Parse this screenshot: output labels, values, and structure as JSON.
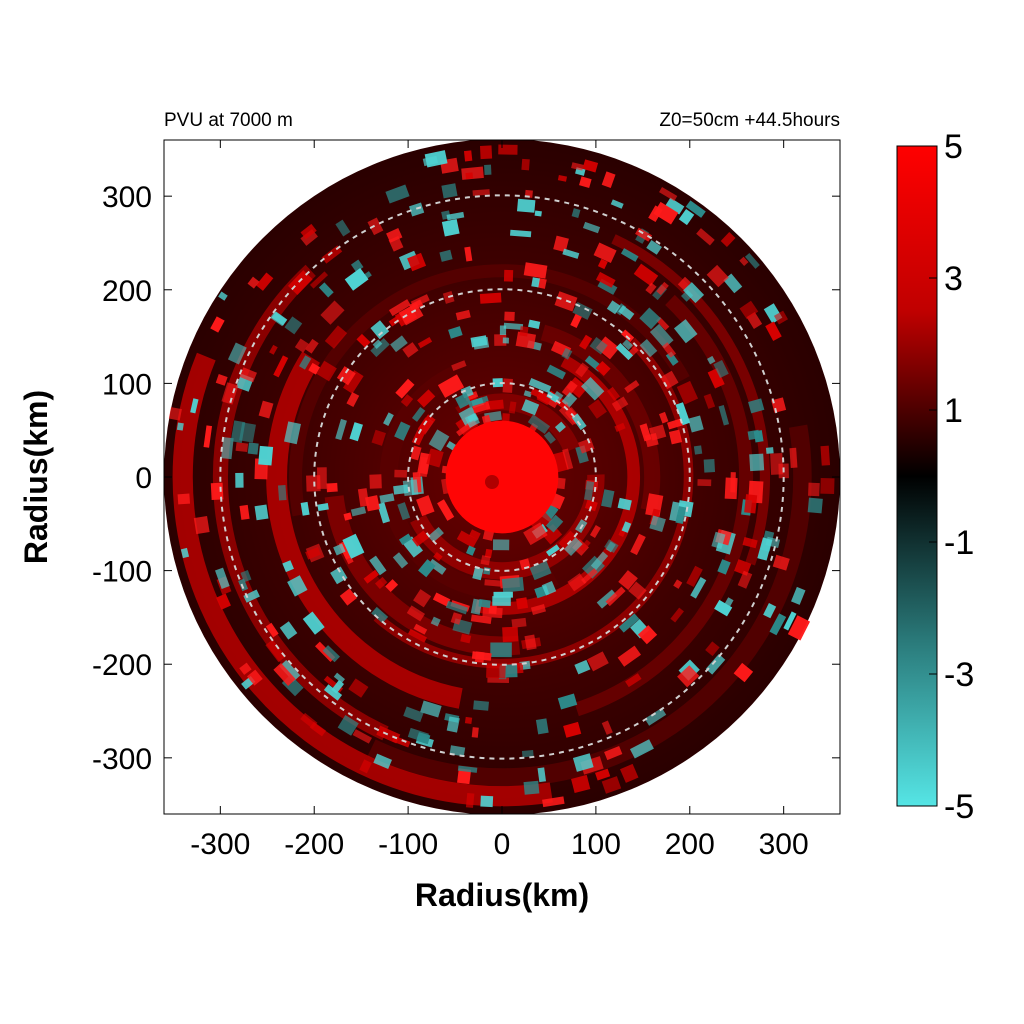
{
  "header": {
    "left": "PVU at  7000 m",
    "right": "Z0=50cm  +44.5hours"
  },
  "chart_data": {
    "type": "heatmap",
    "title": "PVU at  7000 m",
    "subtitle": "Z0=50cm  +44.5hours",
    "xlabel": "Radius(km)",
    "ylabel": "Radius(km)",
    "xlim": [
      -360,
      360
    ],
    "ylim": [
      -360,
      360
    ],
    "xticks": [
      -300,
      -200,
      -100,
      0,
      100,
      200,
      300
    ],
    "yticks": [
      300,
      200,
      100,
      0,
      -100,
      -200,
      -300
    ],
    "x_tick_labels": [
      "-300",
      "-200",
      "-100",
      "0",
      "100",
      "200",
      "300"
    ],
    "y_tick_labels": [
      "300",
      "200",
      "100",
      "0",
      "-100",
      "-200",
      "-300"
    ],
    "data_domain_radius_km": 360,
    "reference_circles_km": [
      100,
      200,
      300
    ],
    "center_core": {
      "radius_km": 60,
      "value_pvu": 5
    },
    "field_description": "polar PVU field with red positive spiral bands and cyan negative patches",
    "colorbar": {
      "min": -5,
      "max": 5,
      "ticks": [
        5,
        3,
        1,
        -1,
        -3,
        -5
      ],
      "tick_labels": [
        "5",
        "3",
        "1",
        "-1",
        "-3",
        "-5"
      ],
      "colors": [
        "#ff0000",
        "#000000",
        "#55e5e5"
      ]
    }
  }
}
